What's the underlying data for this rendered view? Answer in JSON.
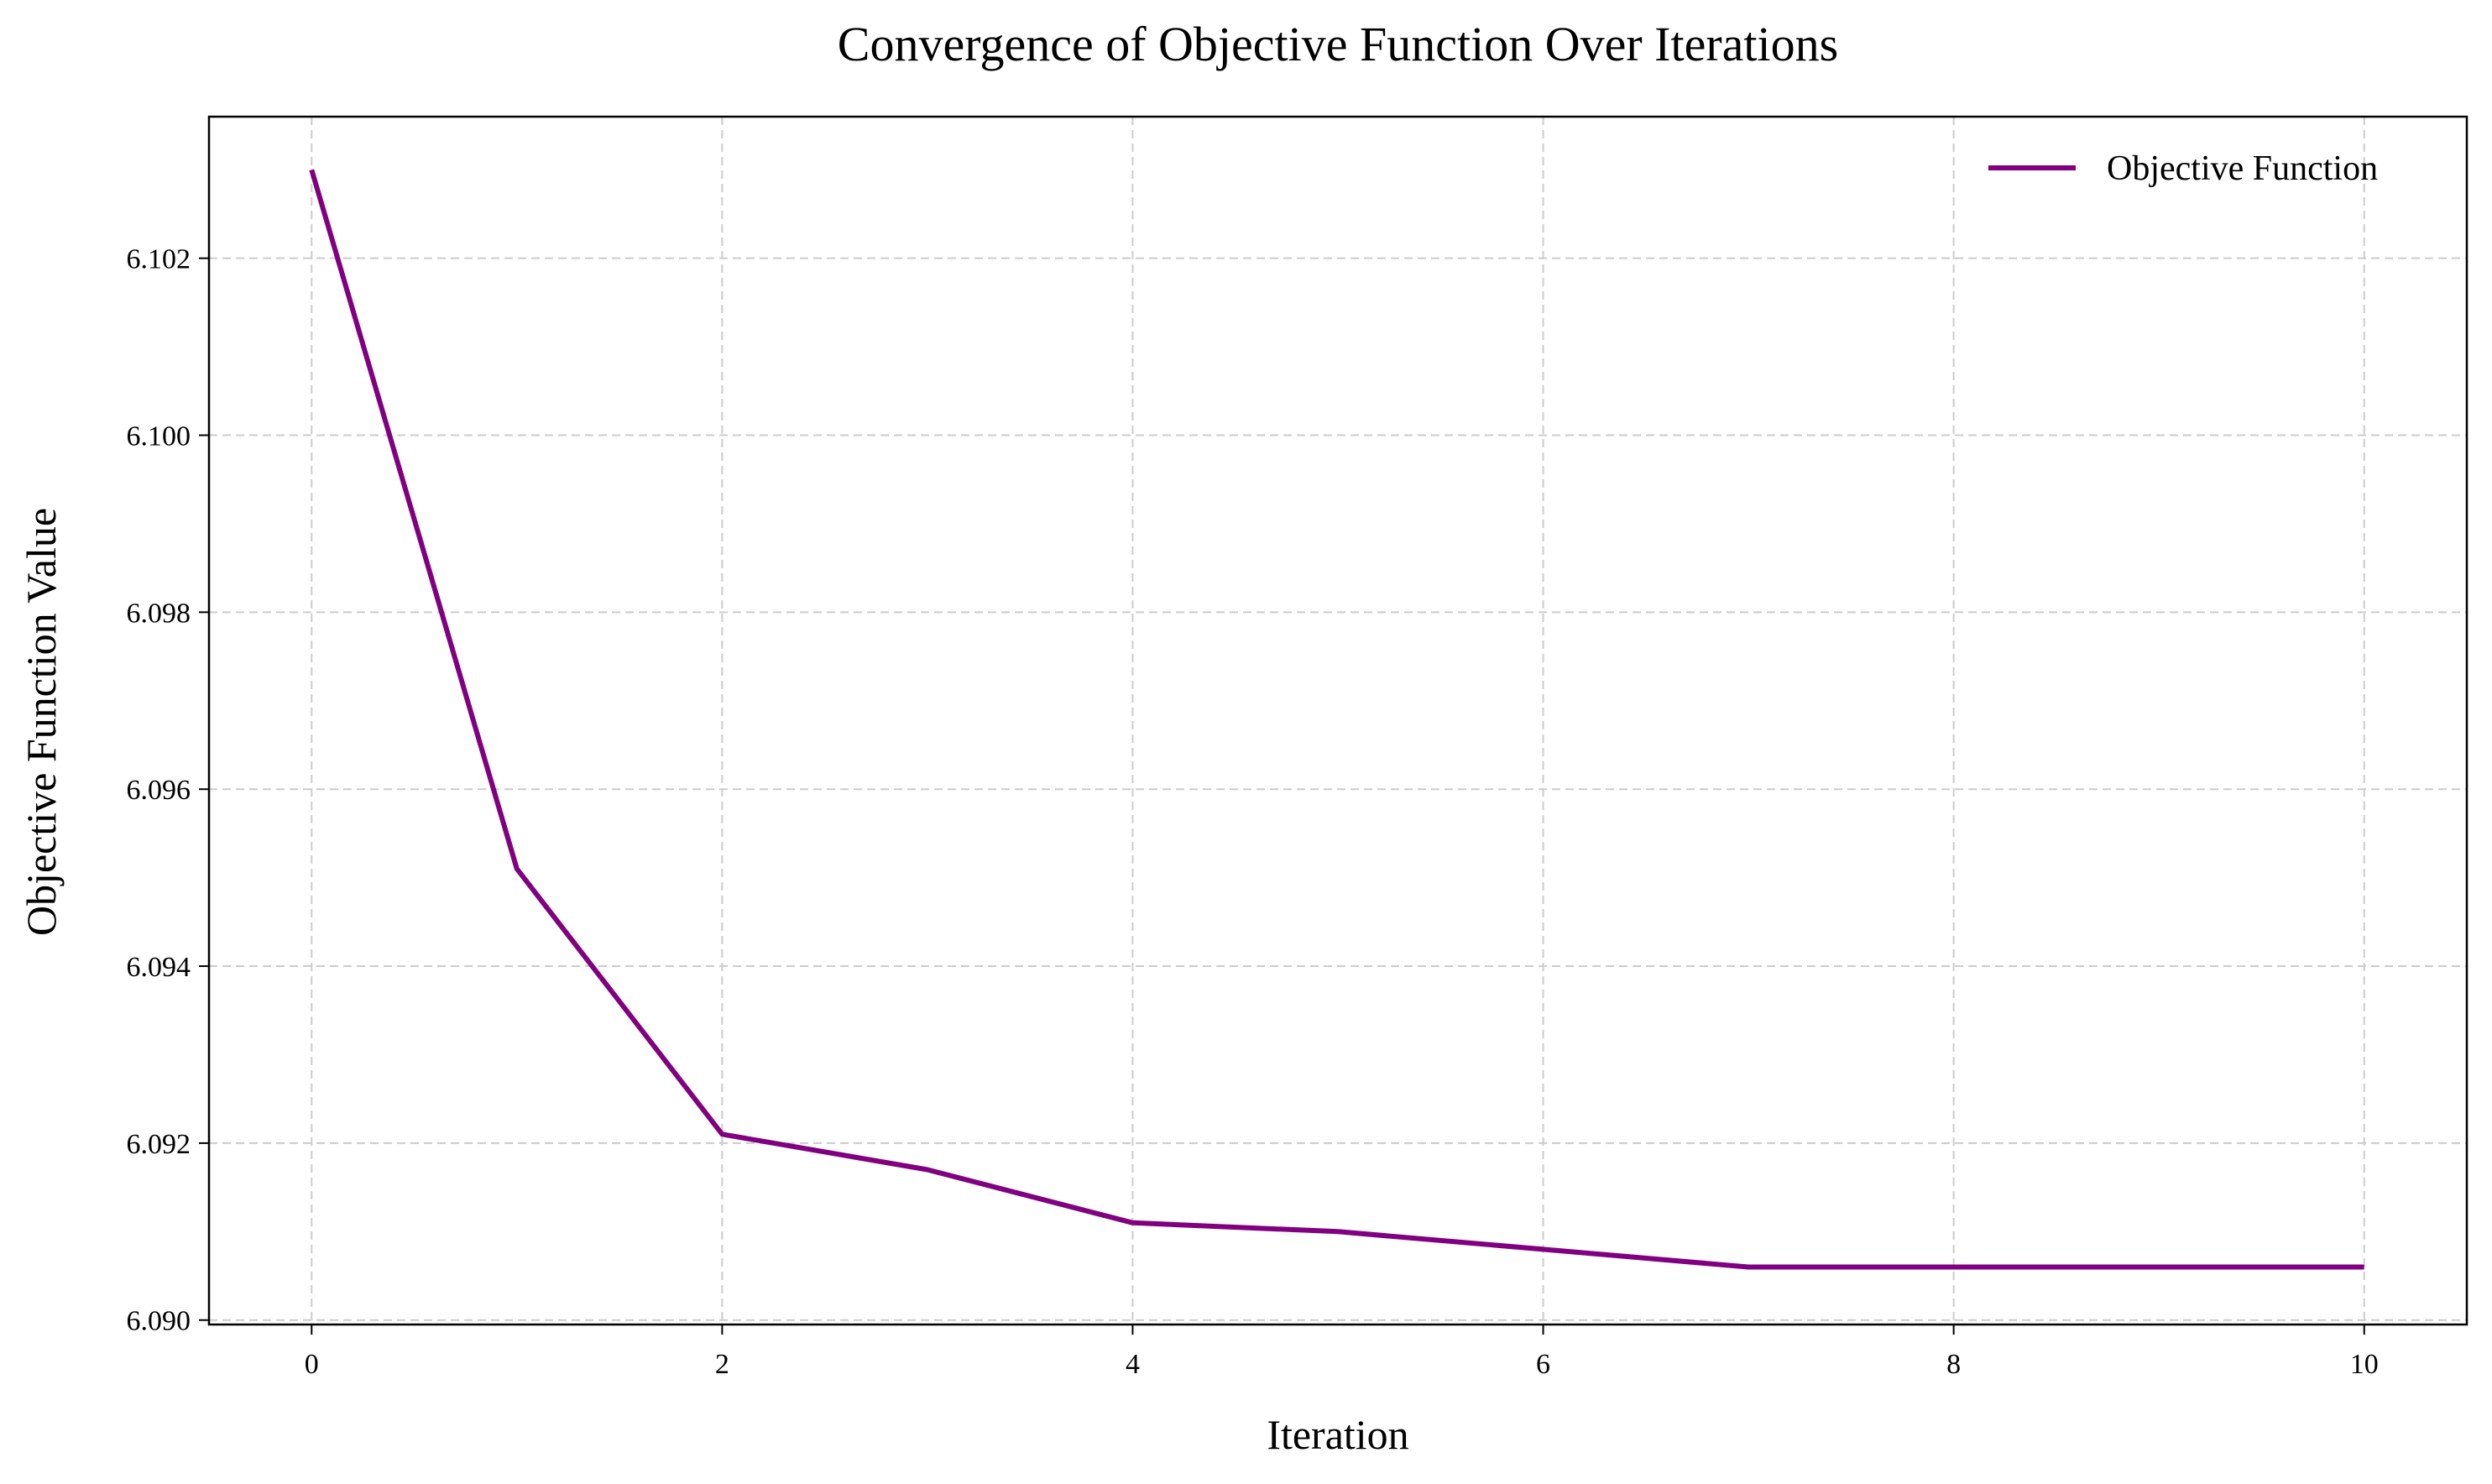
{
  "chart_data": {
    "type": "line",
    "title": "Convergence of Objective Function Over Iterations",
    "xlabel": "Iteration",
    "ylabel": "Objective Function Value",
    "xlim": [
      -0.5,
      10.5
    ],
    "ylim": [
      6.08995,
      6.1036
    ],
    "xticks": [
      0,
      2,
      4,
      6,
      8,
      10
    ],
    "yticks": [
      6.09,
      6.092,
      6.094,
      6.096,
      6.098,
      6.1,
      6.102
    ],
    "xtick_labels": [
      "0",
      "2",
      "4",
      "6",
      "8",
      "10"
    ],
    "ytick_labels": [
      "6.090",
      "6.092",
      "6.094",
      "6.096",
      "6.098",
      "6.100",
      "6.102"
    ],
    "grid": true,
    "legend_position": "top-right",
    "series": [
      {
        "name": "Objective Function",
        "color": "#800080",
        "x": [
          0,
          1,
          2,
          3,
          4,
          5,
          6,
          7,
          8,
          9,
          10
        ],
        "values": [
          6.103,
          6.0951,
          6.0921,
          6.0917,
          6.0911,
          6.091,
          6.0908,
          6.0906,
          6.0906,
          6.0906,
          6.0906
        ]
      }
    ]
  }
}
